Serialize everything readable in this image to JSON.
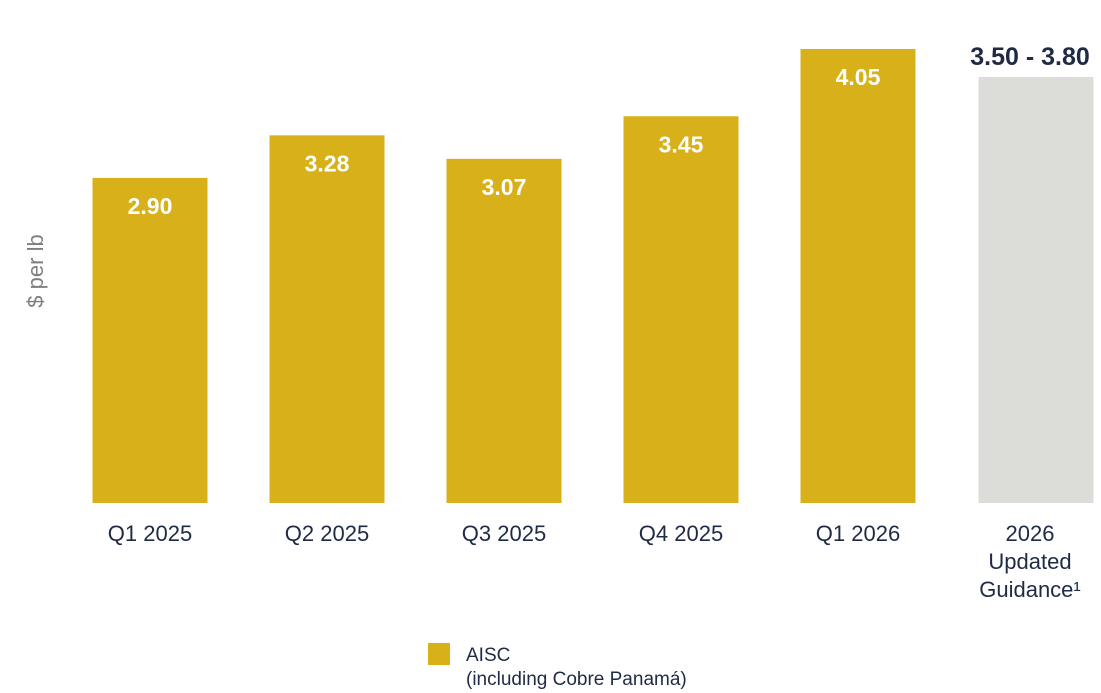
{
  "chart_data": {
    "type": "bar",
    "ylabel": "$ per lb",
    "xlabel": "",
    "ylim": [
      0,
      4.05
    ],
    "grid": false,
    "categories": [
      "Q1 2025",
      "Q2 2025",
      "Q3 2025",
      "Q4 2025",
      "Q1 2026"
    ],
    "values": [
      2.9,
      3.28,
      3.07,
      3.45,
      4.05
    ],
    "value_labels": [
      "2.90",
      "3.28",
      "3.07",
      "3.45",
      "4.05"
    ],
    "bar_color": "#d8b11a",
    "guidance": {
      "category_lines": [
        "2026",
        "Updated",
        "Guidance¹"
      ],
      "value_range": [
        3.5,
        3.8
      ],
      "label": "3.50 - 3.80",
      "color": "#dcdcd8"
    },
    "legend": {
      "position": "bottom-center",
      "entries": [
        {
          "label_lines": [
            "AISC",
            "(including Cobre Panamá)"
          ],
          "color": "#d8b11a"
        }
      ]
    }
  }
}
